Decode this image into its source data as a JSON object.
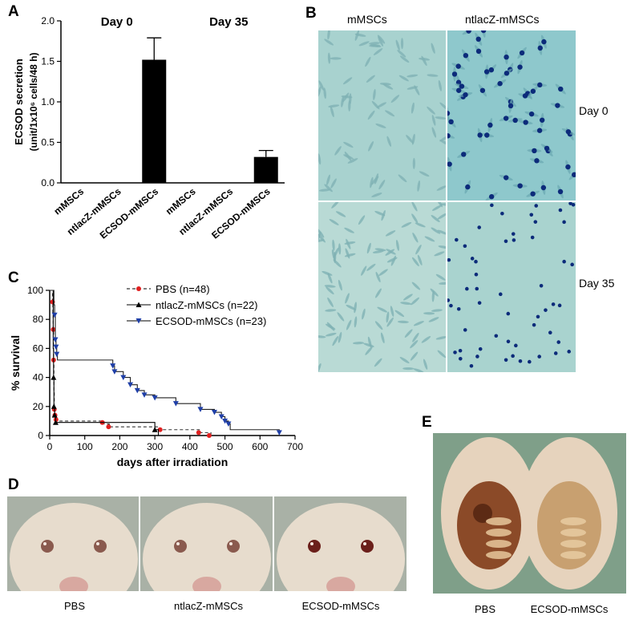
{
  "panels": {
    "a": {
      "letter": "A",
      "day0": "Day 0",
      "day35": "Day 35",
      "ylabel_line1": "ECSOD secretion",
      "ylabel_line2": "(unit/1x10⁶ cells/48 h)"
    },
    "b": {
      "letter": "B",
      "col1": "mMSCs",
      "col2": "ntlacZ-mMSCs",
      "row1": "Day 0",
      "row2": "Day 35"
    },
    "c": {
      "letter": "C"
    },
    "d": {
      "letter": "D",
      "labels": [
        "PBS",
        "ntlacZ-mMSCs",
        "ECSOD-mMSCs"
      ]
    },
    "e": {
      "letter": "E",
      "labels": [
        "PBS",
        "ECSOD-mMSCs"
      ]
    }
  },
  "chart_data": [
    {
      "type": "bar",
      "categories": [
        "mMSCs",
        "ntlacZ-mMSCs",
        "ECSOD-mMSCs",
        "mMSCs",
        "ntlacZ-mMSCs",
        "ECSOD-mMSCs"
      ],
      "values": [
        0,
        0,
        1.52,
        0,
        0,
        0.32
      ],
      "errors": [
        0,
        0,
        0.27,
        0,
        0,
        0.08
      ],
      "ylabel": "ECSOD secretion (unit/1x10⁶ cells/48 h)",
      "ylim": [
        0,
        2.0
      ],
      "yticks": [
        "0.0",
        "0.5",
        "1.0",
        "1.5",
        "2.0"
      ],
      "groups": [
        "Day 0",
        "Day 35"
      ],
      "bar_color": "#000000"
    },
    {
      "type": "line",
      "xlabel": "days after irradiation",
      "ylabel": "% survival",
      "xlim": [
        0,
        700
      ],
      "ylim": [
        0,
        100
      ],
      "xticks": [
        "0",
        "100",
        "200",
        "300",
        "400",
        "500",
        "600",
        "700"
      ],
      "yticks": [
        "0",
        "20",
        "40",
        "60",
        "80",
        "100"
      ],
      "legend_position": "top-right",
      "series": [
        {
          "name": "PBS (n=48)",
          "color": "#e02020",
          "style": "dashed",
          "steps": [
            [
              0,
              100
            ],
            [
              8,
              92
            ],
            [
              9,
              84
            ],
            [
              10,
              73
            ],
            [
              11,
              52
            ],
            [
              12,
              30
            ],
            [
              13,
              18
            ],
            [
              15,
              14
            ],
            [
              18,
              11
            ],
            [
              20,
              10
            ],
            [
              155,
              8
            ],
            [
              170,
              6
            ],
            [
              310,
              4
            ],
            [
              430,
              2
            ],
            [
              460,
              0
            ]
          ],
          "markers": [
            [
              8,
              92
            ],
            [
              10,
              73
            ],
            [
              11,
              52
            ],
            [
              13,
              18
            ],
            [
              15,
              14
            ],
            [
              18,
              11
            ],
            [
              150,
              9
            ],
            [
              168,
              6
            ],
            [
              315,
              4
            ],
            [
              425,
              2
            ],
            [
              455,
              0
            ]
          ]
        },
        {
          "name": "ntlacZ-mMSCs (n=22)",
          "color": "#000000",
          "style": "solid",
          "steps": [
            [
              0,
              100
            ],
            [
              10,
              60
            ],
            [
              11,
              40
            ],
            [
              12,
              20
            ],
            [
              14,
              14
            ],
            [
              17,
              9
            ],
            [
              300,
              4
            ],
            [
              310,
              0
            ]
          ],
          "markers": [
            [
              11,
              40
            ],
            [
              12,
              20
            ],
            [
              14,
              14
            ],
            [
              17,
              9
            ],
            [
              300,
              4
            ]
          ]
        },
        {
          "name": "ECSOD-mMSCs (n=23)",
          "color": "#1f3fa8",
          "style": "solid",
          "steps": [
            [
              0,
              100
            ],
            [
              12,
              90
            ],
            [
              14,
              83
            ],
            [
              16,
              66
            ],
            [
              18,
              61
            ],
            [
              20,
              56
            ],
            [
              22,
              52
            ],
            [
              180,
              48
            ],
            [
              185,
              44
            ],
            [
              210,
              40
            ],
            [
              230,
              35
            ],
            [
              250,
              31
            ],
            [
              270,
              28
            ],
            [
              300,
              26
            ],
            [
              360,
              22
            ],
            [
              430,
              18
            ],
            [
              470,
              16
            ],
            [
              490,
              13
            ],
            [
              500,
              10
            ],
            [
              510,
              8
            ],
            [
              515,
              4
            ],
            [
              655,
              0
            ]
          ],
          "markers": [
            [
              14,
              83
            ],
            [
              16,
              66
            ],
            [
              18,
              61
            ],
            [
              20,
              56
            ],
            [
              180,
              48
            ],
            [
              185,
              44
            ],
            [
              210,
              40
            ],
            [
              230,
              35
            ],
            [
              250,
              31
            ],
            [
              270,
              28
            ],
            [
              300,
              26
            ],
            [
              360,
              22
            ],
            [
              430,
              18
            ],
            [
              470,
              16
            ],
            [
              490,
              13
            ],
            [
              500,
              10
            ],
            [
              510,
              8
            ],
            [
              655,
              2
            ]
          ]
        }
      ]
    }
  ]
}
